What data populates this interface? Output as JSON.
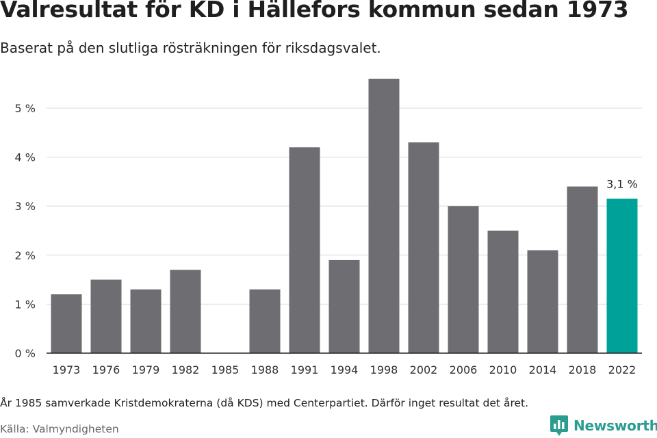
{
  "header": {
    "title": "Valresultat för KD i Hällefors kommun sedan 1973",
    "subtitle": "Baserat på den slutliga rösträkningen för riksdagsvalet."
  },
  "footer": {
    "note": "År 1985 samverkade Kristdemokraterna (då KDS) med Centerpartiet. Därför inget resultat det året.",
    "source": "Källa: Valmyndigheten",
    "brand": "Newsworthy"
  },
  "colors": {
    "bar": "#6e6d72",
    "highlight": "#00a199",
    "grid": "#d9d9d9",
    "axis": "#222222",
    "brand": "#2a9d8f"
  },
  "chart_data": {
    "type": "bar",
    "title": "Valresultat för KD i Hällefors kommun sedan 1973",
    "subtitle": "Baserat på den slutliga rösträkningen för riksdagsvalet.",
    "categories": [
      "1973",
      "1976",
      "1979",
      "1982",
      "1985",
      "1988",
      "1991",
      "1994",
      "1998",
      "2002",
      "2006",
      "2010",
      "2014",
      "2018",
      "2022"
    ],
    "values": [
      1.2,
      1.5,
      1.3,
      1.7,
      null,
      1.3,
      4.2,
      1.9,
      5.6,
      4.3,
      3.0,
      2.5,
      2.1,
      3.4,
      3.15
    ],
    "highlight_category": "2022",
    "data_labels": [
      {
        "category": "2022",
        "text": "3,1 %"
      }
    ],
    "ylim": [
      0,
      5.6
    ],
    "yticks": [
      0,
      1,
      2,
      3,
      4,
      5
    ],
    "ytick_labels": [
      "0 %",
      "1 %",
      "2 %",
      "3 %",
      "4 %",
      "5 %"
    ],
    "xlabel": "",
    "ylabel": "",
    "grid": true,
    "legend": "none"
  }
}
